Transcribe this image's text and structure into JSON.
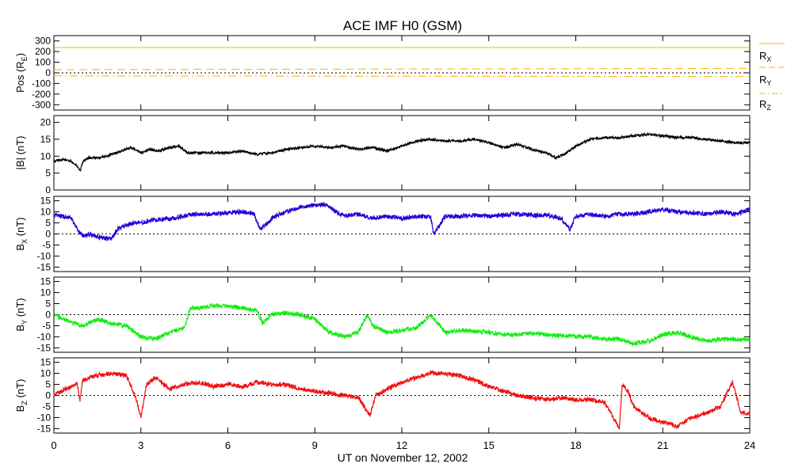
{
  "chart_data": [
    {
      "type": "line",
      "title": "ACE IMF H0 (GSM)",
      "ylabel_main": "Pos (R",
      "ylabel_sub": "E",
      "ylabel_close": ")",
      "ylim": [
        -350,
        350
      ],
      "yticks": [
        300,
        200,
        100,
        0,
        -100,
        -200,
        -300
      ],
      "zero_line": true,
      "series": [
        {
          "name": "R",
          "sub": "X",
          "color": "#ffb000",
          "dash": "solid",
          "x": [
            0,
            24
          ],
          "values": [
            238,
            238
          ]
        },
        {
          "name": "R",
          "sub": "Y",
          "color": "#ffb000",
          "dash": "dashed",
          "x": [
            0,
            6,
            12,
            18,
            24
          ],
          "values": [
            30,
            33,
            36,
            39,
            42
          ]
        },
        {
          "name": "R",
          "sub": "Z",
          "color": "#ffb000",
          "dash": "dashdot",
          "x": [
            0,
            6,
            12,
            18,
            24
          ],
          "values": [
            -28,
            -30,
            -32,
            -33,
            -35
          ]
        }
      ]
    },
    {
      "type": "line",
      "ylabel_main": "|B| (nT)",
      "ylim": [
        0,
        22
      ],
      "yticks": [
        20,
        15,
        10,
        5,
        0
      ],
      "zero_line": false,
      "series": [
        {
          "color": "#000000",
          "x": [
            0,
            0.3,
            0.6,
            0.8,
            0.9,
            1.0,
            1.2,
            1.5,
            1.8,
            2.0,
            2.3,
            2.6,
            2.8,
            3.0,
            3.3,
            3.6,
            4.0,
            4.3,
            4.6,
            5.0,
            5.5,
            6.0,
            6.5,
            7.0,
            7.5,
            8.0,
            8.5,
            9.0,
            9.5,
            10.0,
            10.5,
            11.0,
            11.5,
            12.0,
            12.5,
            13.0,
            13.5,
            14.0,
            14.5,
            15.0,
            15.5,
            16.0,
            16.5,
            17.0,
            17.3,
            17.6,
            18.0,
            18.5,
            19.0,
            19.5,
            20.0,
            20.5,
            21.0,
            21.5,
            22.0,
            22.5,
            23.0,
            23.5,
            24.0
          ],
          "values": [
            8.5,
            9,
            8.5,
            7,
            5.5,
            8.5,
            9.5,
            9.5,
            10,
            10.5,
            11.5,
            12.5,
            12,
            11,
            12,
            11.5,
            12.5,
            13,
            11,
            11,
            11,
            11,
            11.5,
            10.5,
            11,
            12,
            12.5,
            13,
            12.5,
            13,
            12,
            12.5,
            11.5,
            13,
            14.5,
            15,
            14.5,
            14.5,
            15,
            14,
            12.5,
            13.5,
            12,
            11,
            9.5,
            10.5,
            13,
            15,
            15.5,
            15.5,
            16,
            16.5,
            16,
            15.5,
            15.5,
            15,
            14.5,
            14,
            14
          ]
        }
      ]
    },
    {
      "type": "line",
      "ylabel_main": "B",
      "ylabel_sub": "X",
      "ylabel_close": " (nT)",
      "ylim": [
        -17,
        17
      ],
      "yticks": [
        15,
        10,
        5,
        0,
        -5,
        -10,
        -15
      ],
      "zero_line": true,
      "series": [
        {
          "color": "#2200d9",
          "x": [
            0,
            0.3,
            0.6,
            0.8,
            1.0,
            1.2,
            1.4,
            1.6,
            1.8,
            2.0,
            2.2,
            2.5,
            2.8,
            3.0,
            3.3,
            3.6,
            4.0,
            4.3,
            4.6,
            5.0,
            5.5,
            6.0,
            6.5,
            6.9,
            7.1,
            7.3,
            7.6,
            8.0,
            8.5,
            9.0,
            9.3,
            9.5,
            10.0,
            10.5,
            11.0,
            11.5,
            12.0,
            12.5,
            13.0,
            13.1,
            13.5,
            14.0,
            14.5,
            15.0,
            15.5,
            16.0,
            16.5,
            17.0,
            17.5,
            17.8,
            18.0,
            18.5,
            19.0,
            19.5,
            20.0,
            20.5,
            21.0,
            21.5,
            22.0,
            22.5,
            23.0,
            23.5,
            24.0
          ],
          "values": [
            8.5,
            8,
            7,
            2,
            -1,
            0,
            -1,
            -1.5,
            -2,
            -2,
            2,
            4,
            5,
            5,
            6,
            6.5,
            7,
            7.5,
            8.5,
            9,
            9,
            9.5,
            10,
            9,
            2,
            4,
            8,
            10,
            12,
            13,
            13.5,
            12,
            8,
            9,
            7,
            8,
            7,
            8,
            7.5,
            0,
            8,
            8,
            8.5,
            8,
            8.5,
            9,
            8.5,
            8.5,
            7,
            2,
            8,
            9,
            8,
            9,
            9,
            10,
            11,
            10,
            9.5,
            9,
            10,
            9,
            11
          ]
        }
      ]
    },
    {
      "type": "line",
      "ylabel_main": "B",
      "ylabel_sub": "Y",
      "ylabel_close": " (nT)",
      "ylim": [
        -17,
        17
      ],
      "yticks": [
        15,
        10,
        5,
        0,
        -5,
        -10,
        -15
      ],
      "zero_line": true,
      "series": [
        {
          "color": "#11ee11",
          "x": [
            0,
            0.5,
            1.0,
            1.5,
            2.0,
            2.5,
            3.0,
            3.5,
            4.0,
            4.5,
            4.7,
            5.0,
            5.5,
            6.0,
            6.5,
            7.0,
            7.2,
            7.5,
            8.0,
            8.5,
            9.0,
            9.5,
            10.0,
            10.5,
            10.8,
            11.0,
            11.5,
            12.0,
            12.5,
            13.0,
            13.5,
            14.0,
            14.5,
            15.0,
            15.5,
            16.0,
            16.5,
            17.0,
            17.5,
            18.0,
            18.5,
            19.0,
            19.5,
            20.0,
            20.5,
            21.0,
            21.5,
            22.0,
            22.5,
            23.0,
            23.5,
            24.0
          ],
          "values": [
            0,
            -3,
            -5,
            -2,
            -4,
            -5,
            -10,
            -11,
            -8,
            -6,
            3,
            3,
            4,
            4,
            3,
            2,
            -4,
            0,
            1,
            0,
            -2,
            -8,
            -10,
            -8,
            0,
            -5,
            -8,
            -7,
            -6,
            0,
            -8,
            -7,
            -7.5,
            -8,
            -9,
            -9,
            -8.5,
            -9,
            -9.5,
            -10,
            -10,
            -11,
            -11,
            -13,
            -12,
            -9,
            -8,
            -10,
            -12,
            -11,
            -11,
            -11.5
          ]
        }
      ]
    },
    {
      "type": "line",
      "ylabel_main": "B",
      "ylabel_sub": "Z",
      "ylabel_close": " (nT)",
      "ylim": [
        -17,
        17
      ],
      "yticks": [
        15,
        10,
        5,
        0,
        -5,
        -10,
        -15
      ],
      "xticks": [
        0,
        3,
        6,
        9,
        12,
        15,
        18,
        21,
        24
      ],
      "xlim": [
        0,
        24
      ],
      "xlabel": "UT on November 12, 2002",
      "zero_line": true,
      "series": [
        {
          "color": "#ee1111",
          "x": [
            0,
            0.4,
            0.8,
            0.9,
            1.0,
            1.5,
            2.0,
            2.5,
            2.8,
            3.0,
            3.2,
            3.5,
            4.0,
            4.5,
            5.0,
            5.5,
            6.0,
            6.5,
            7.0,
            7.5,
            8.0,
            8.5,
            9.0,
            9.5,
            10.0,
            10.5,
            10.9,
            11.1,
            11.5,
            12.0,
            12.5,
            13.0,
            13.5,
            14.0,
            14.5,
            15.0,
            15.5,
            16.0,
            16.5,
            17.0,
            17.5,
            18.0,
            18.5,
            19.0,
            19.5,
            19.6,
            19.8,
            20.0,
            20.5,
            21.0,
            21.5,
            22.0,
            22.5,
            23.0,
            23.4,
            23.7,
            24.0
          ],
          "values": [
            0,
            3,
            5,
            -2,
            7,
            9,
            10,
            9,
            0,
            -10,
            5,
            8,
            3,
            5,
            6,
            4,
            5,
            4,
            6,
            5,
            5,
            3,
            2,
            1,
            0,
            -1,
            -9,
            0,
            3,
            6,
            8,
            10,
            10,
            9,
            7,
            4,
            2,
            0,
            -1,
            -2,
            -1,
            -2,
            -2,
            -3,
            -15,
            5,
            2,
            -5,
            -10,
            -12,
            -14,
            -10,
            -8,
            -5,
            6,
            -8,
            -8
          ]
        }
      ]
    }
  ]
}
